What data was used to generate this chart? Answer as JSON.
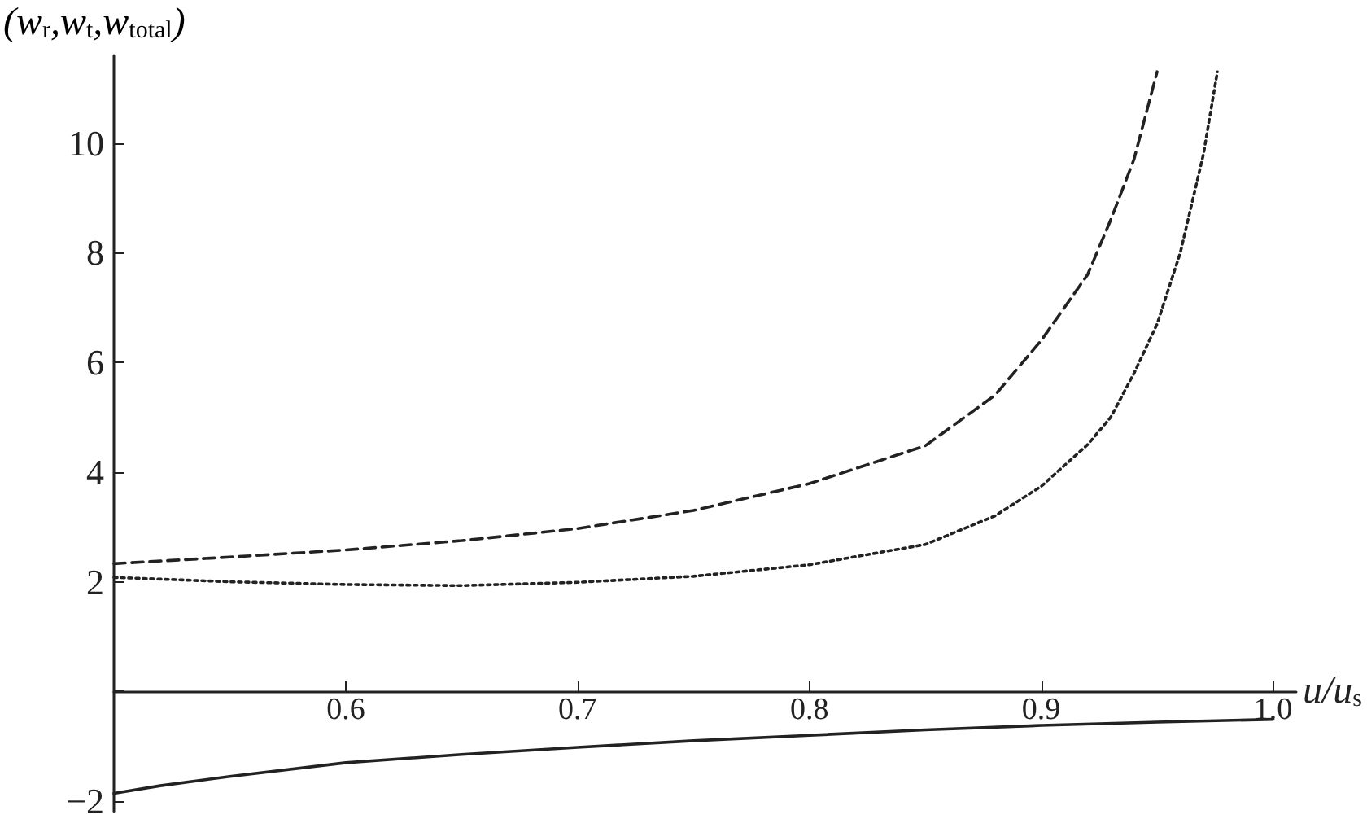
{
  "chart_data": {
    "type": "line",
    "ylabel": "(w$_{r}$,w$_{t}$,w$_{total}$)",
    "xlabel": "u/u$_{s}$",
    "xlim": [
      0.5,
      1.01
    ],
    "xticks": [
      0.6,
      0.7,
      0.8,
      0.9,
      {
        "value": 1.0,
        "label": "1.0"
      }
    ],
    "ylim": [
      -2.2,
      11.6
    ],
    "yticks": [
      {
        "value": -2,
        "label": "−2"
      },
      {
        "value": 0,
        "label": null
      },
      2,
      4,
      6,
      8,
      10
    ],
    "marker": "none",
    "series": [
      {
        "color": "#222222",
        "line_style": "dashed",
        "x": [
          0.5,
          0.55,
          0.6,
          0.65,
          0.7,
          0.75,
          0.8,
          0.85,
          0.88,
          0.9,
          0.92,
          0.93,
          0.94,
          0.95
        ],
        "values": [
          2.33,
          2.45,
          2.58,
          2.75,
          2.97,
          3.3,
          3.79,
          4.48,
          5.4,
          6.4,
          7.6,
          8.6,
          9.7,
          11.3
        ]
      },
      {
        "color": "#222222",
        "line_style": "dotted",
        "x": [
          0.5,
          0.55,
          0.6,
          0.65,
          0.7,
          0.75,
          0.8,
          0.85,
          0.88,
          0.9,
          0.92,
          0.93,
          0.94,
          0.95,
          0.96,
          0.97,
          0.976
        ],
        "values": [
          2.08,
          2.0,
          1.95,
          1.93,
          1.99,
          2.1,
          2.31,
          2.68,
          3.2,
          3.74,
          4.5,
          5.0,
          5.8,
          6.7,
          8.0,
          9.8,
          11.3
        ]
      },
      {
        "color": "#222222",
        "line_style": "solid",
        "x": [
          0.5,
          0.52,
          0.55,
          0.6,
          0.65,
          0.7,
          0.75,
          0.8,
          0.85,
          0.9,
          0.95,
          1.0
        ],
        "values": [
          -1.86,
          -1.72,
          -1.55,
          -1.3,
          -1.15,
          -1.02,
          -0.9,
          -0.8,
          -0.7,
          -0.62,
          -0.56,
          -0.51
        ]
      }
    ]
  }
}
